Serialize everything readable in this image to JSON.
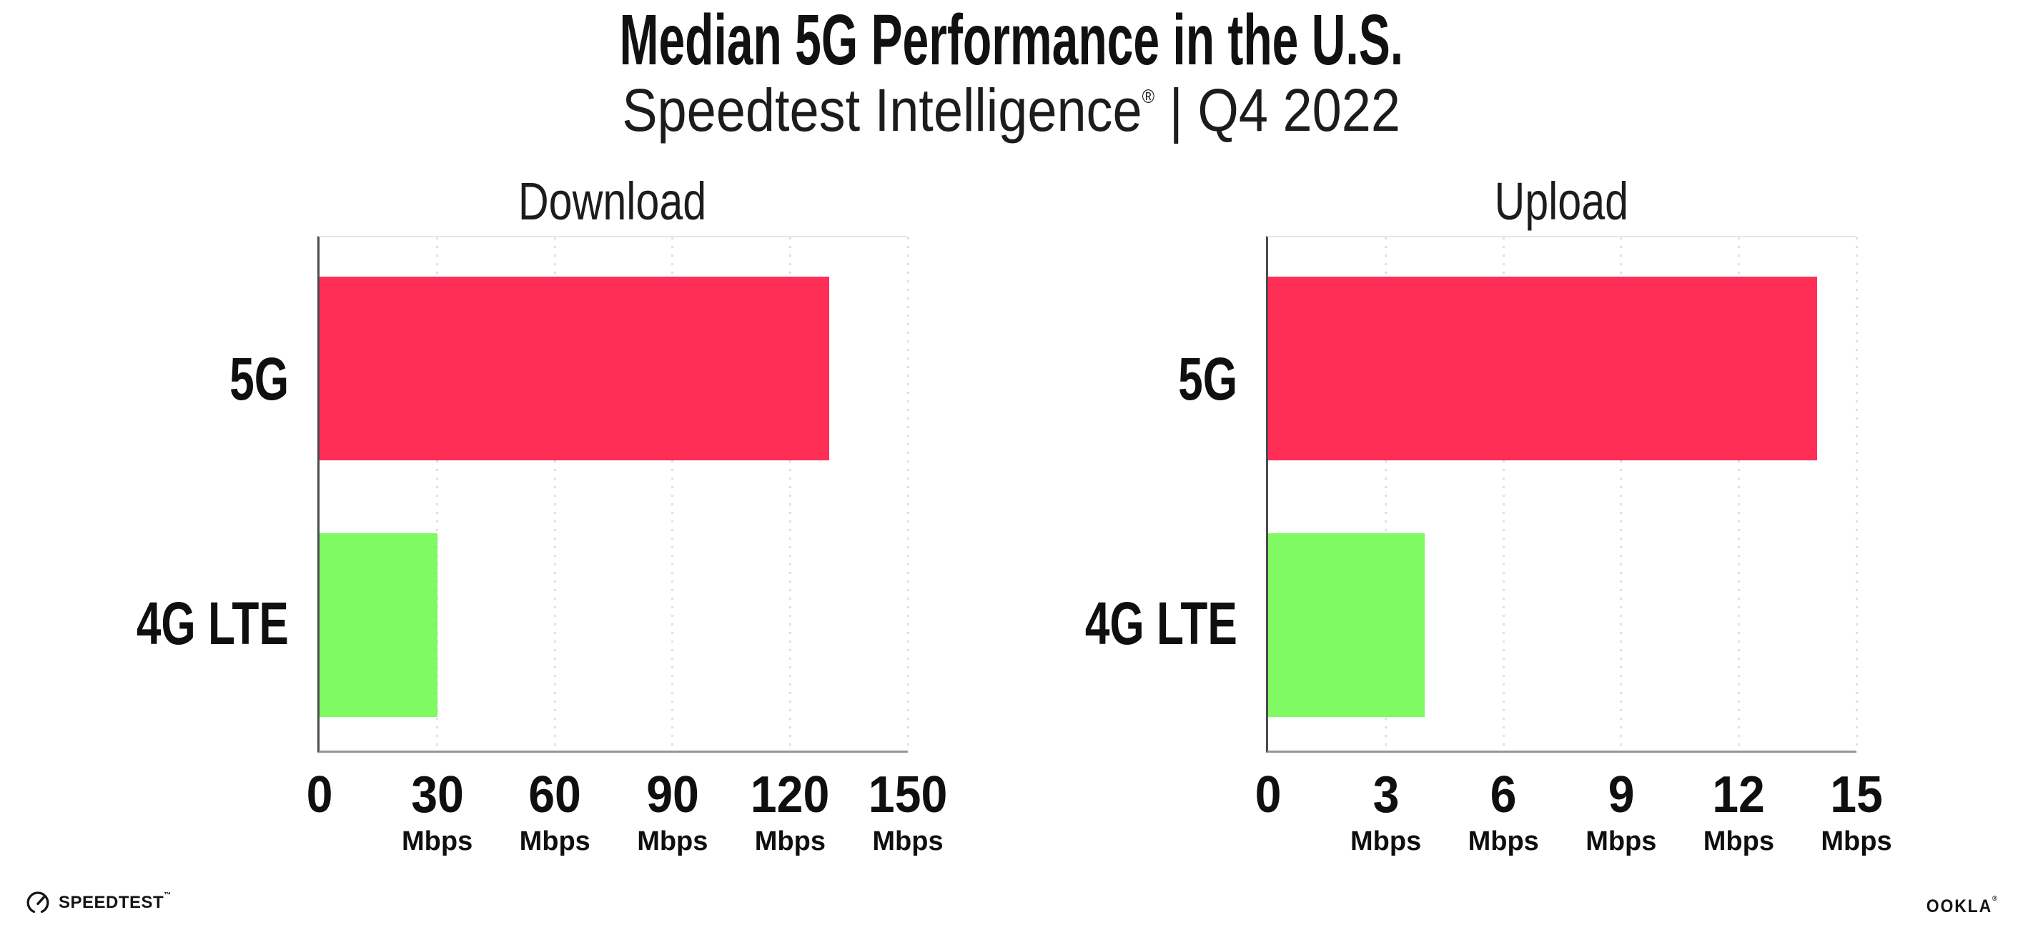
{
  "header": {
    "title": "Median 5G Performance in the U.S.",
    "subtitle_brand": "Speedtest Intelligence",
    "subtitle_reg": "®",
    "subtitle_rest": " | Q4 2022"
  },
  "colors": {
    "bar_5g": "#ff2e57",
    "bar_4g_lte": "#7ffa62",
    "axis_line": "#4b4b50",
    "baseline": "#96969c",
    "gridline_dots": "#dfdfe9",
    "text": "#141414"
  },
  "chart_data": [
    {
      "type": "bar",
      "orientation": "horizontal",
      "title": "Download",
      "categories": [
        "5G",
        "4G LTE"
      ],
      "values": [
        130,
        30
      ],
      "unit": "Mbps",
      "xlim": [
        0,
        150
      ],
      "xticks": [
        0,
        30,
        60,
        90,
        120,
        150
      ],
      "tick_unit": "Mbps",
      "grid": "vertical-dotted",
      "legend": "none",
      "bar_colors": [
        "#ff2e57",
        "#7ffa62"
      ]
    },
    {
      "type": "bar",
      "orientation": "horizontal",
      "title": "Upload",
      "categories": [
        "5G",
        "4G LTE"
      ],
      "values": [
        14,
        4
      ],
      "unit": "Mbps",
      "xlim": [
        0,
        15
      ],
      "xticks": [
        0,
        3,
        6,
        9,
        12,
        15
      ],
      "tick_unit": "Mbps",
      "grid": "vertical-dotted",
      "legend": "none",
      "bar_colors": [
        "#ff2e57",
        "#7ffa62"
      ]
    }
  ],
  "footer": {
    "speedtest_label": "SPEEDTEST",
    "speedtest_tm": "™",
    "ookla_label": "OOKLA",
    "ookla_reg": "®"
  }
}
